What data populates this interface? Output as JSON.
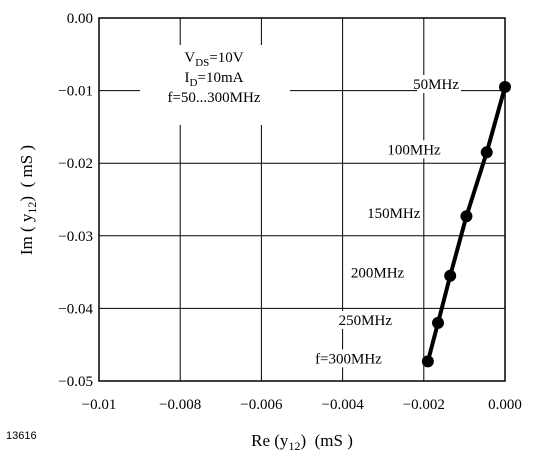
{
  "figure_id": "13616",
  "chart_data": {
    "type": "line",
    "xlabel": {
      "main": "Re (y",
      "sub": "12",
      "tail": ") (mS )"
    },
    "ylabel": {
      "main": "Im ( y",
      "sub": "12",
      "tail": ") ( mS )"
    },
    "xlim": [
      -0.01,
      0.0
    ],
    "ylim": [
      -0.05,
      0.0
    ],
    "xticks": [
      -0.01,
      -0.008,
      -0.006,
      -0.004,
      -0.002,
      0.0
    ],
    "xtick_labels": [
      "−0.01",
      "−0.008",
      "−0.006",
      "−0.004",
      "−0.002",
      "0.000"
    ],
    "yticks": [
      0.0,
      -0.01,
      -0.02,
      -0.03,
      -0.04,
      -0.05
    ],
    "ytick_labels": [
      "0.00",
      "−0.01",
      "−0.02",
      "−0.03",
      "−0.04",
      "−0.05"
    ],
    "grid": true,
    "conditions": [
      {
        "main": "V",
        "sub": "DS",
        "tail": "=10V"
      },
      {
        "main": "I",
        "sub": "D",
        "tail": "=10mA"
      },
      {
        "main": "f=50...300MHz",
        "sub": "",
        "tail": ""
      }
    ],
    "series": [
      {
        "color": "#000000",
        "points": [
          {
            "x": 0.0,
            "y": -0.0095,
            "label": "50MHz"
          },
          {
            "x": -0.00045,
            "y": -0.0185,
            "label": "100MHz"
          },
          {
            "x": -0.00095,
            "y": -0.0273,
            "label": "150MHz"
          },
          {
            "x": -0.00135,
            "y": -0.0355,
            "label": "200MHz"
          },
          {
            "x": -0.00165,
            "y": -0.042,
            "label": "250MHz"
          },
          {
            "x": -0.0019,
            "y": -0.0473,
            "label": "f=300MHz"
          }
        ]
      }
    ]
  }
}
